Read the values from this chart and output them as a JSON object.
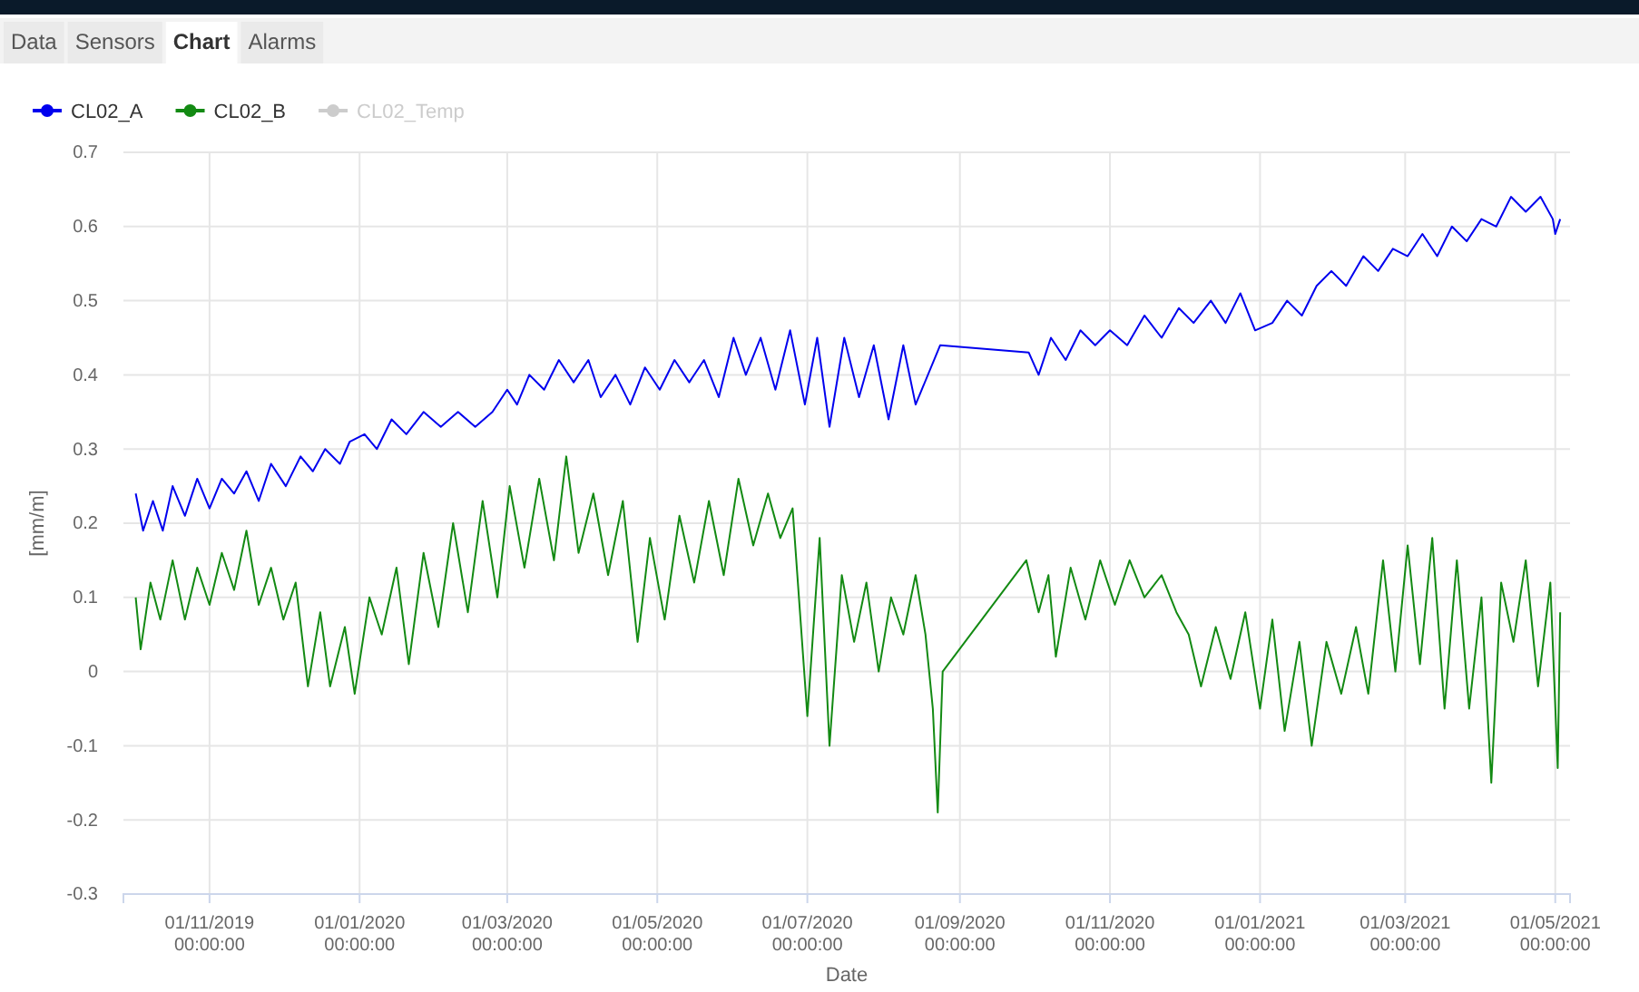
{
  "chart_data": {
    "type": "line",
    "xlabel": "Date",
    "ylabel": "[mm/m]",
    "annotations": [
      "Data",
      "Sensors",
      "Chart",
      "Alarms"
    ],
    "xlim": [
      "2019-09-27",
      "2021-05-07"
    ],
    "xticks": [
      {
        "value": "2019-11-01",
        "label": "01/11/2019 00:00:00"
      },
      {
        "value": "2020-01-01",
        "label": "01/01/2020 00:00:00"
      },
      {
        "value": "2020-03-01",
        "label": "01/03/2020 00:00:00"
      },
      {
        "value": "2020-05-01",
        "label": "01/05/2020 00:00:00"
      },
      {
        "value": "2020-07-01",
        "label": "01/07/2020 00:00:00"
      },
      {
        "value": "2020-09-01",
        "label": "01/09/2020 00:00:00"
      },
      {
        "value": "2020-11-01",
        "label": "01/11/2020 00:00:00"
      },
      {
        "value": "2021-01-01",
        "label": "01/01/2021 00:00:00"
      },
      {
        "value": "2021-03-01",
        "label": "01/03/2021 00:00:00"
      },
      {
        "value": "2021-05-01",
        "label": "01/05/2021 00:00:00"
      }
    ],
    "ylim": [
      -0.3,
      0.7
    ],
    "yticks": [
      -0.3,
      -0.2,
      -0.1,
      0,
      0.1,
      0.2,
      0.3,
      0.4,
      0.5,
      0.6,
      0.7
    ],
    "grid": true,
    "legend": "top left",
    "series": [
      {
        "name": "CL02_A",
        "color": "#0000ee",
        "x": [
          "2019-10-02",
          "2019-10-05",
          "2019-10-09",
          "2019-10-13",
          "2019-10-17",
          "2019-10-22",
          "2019-10-27",
          "2019-11-01",
          "2019-11-06",
          "2019-11-11",
          "2019-11-16",
          "2019-11-21",
          "2019-11-26",
          "2019-12-02",
          "2019-12-08",
          "2019-12-13",
          "2019-12-18",
          "2019-12-24",
          "2019-12-28",
          "2020-01-03",
          "2020-01-08",
          "2020-01-14",
          "2020-01-20",
          "2020-01-27",
          "2020-02-03",
          "2020-02-10",
          "2020-02-17",
          "2020-02-24",
          "2020-03-01",
          "2020-03-05",
          "2020-03-10",
          "2020-03-16",
          "2020-03-22",
          "2020-03-28",
          "2020-04-03",
          "2020-04-08",
          "2020-04-14",
          "2020-04-20",
          "2020-04-26",
          "2020-05-02",
          "2020-05-08",
          "2020-05-14",
          "2020-05-20",
          "2020-05-26",
          "2020-06-01",
          "2020-06-06",
          "2020-06-12",
          "2020-06-18",
          "2020-06-24",
          "2020-06-30",
          "2020-07-05",
          "2020-07-10",
          "2020-07-16",
          "2020-07-22",
          "2020-07-28",
          "2020-08-03",
          "2020-08-09",
          "2020-08-14",
          "2020-08-24",
          "2020-09-29",
          "2020-10-03",
          "2020-10-08",
          "2020-10-14",
          "2020-10-20",
          "2020-10-26",
          "2020-11-01",
          "2020-11-08",
          "2020-11-15",
          "2020-11-22",
          "2020-11-29",
          "2020-12-05",
          "2020-12-12",
          "2020-12-18",
          "2020-12-24",
          "2020-12-30",
          "2021-01-06",
          "2021-01-12",
          "2021-01-18",
          "2021-01-24",
          "2021-01-30",
          "2021-02-05",
          "2021-02-12",
          "2021-02-18",
          "2021-02-24",
          "2021-03-02",
          "2021-03-08",
          "2021-03-14",
          "2021-03-20",
          "2021-03-26",
          "2021-04-01",
          "2021-04-07",
          "2021-04-13",
          "2021-04-19",
          "2021-04-25",
          "2021-04-30",
          "2021-05-01",
          "2021-05-03"
        ],
        "values": [
          0.24,
          0.19,
          0.23,
          0.19,
          0.25,
          0.21,
          0.26,
          0.22,
          0.26,
          0.24,
          0.27,
          0.23,
          0.28,
          0.25,
          0.29,
          0.27,
          0.3,
          0.28,
          0.31,
          0.32,
          0.3,
          0.34,
          0.32,
          0.35,
          0.33,
          0.35,
          0.33,
          0.35,
          0.38,
          0.36,
          0.4,
          0.38,
          0.42,
          0.39,
          0.42,
          0.37,
          0.4,
          0.36,
          0.41,
          0.38,
          0.42,
          0.39,
          0.42,
          0.37,
          0.45,
          0.4,
          0.45,
          0.38,
          0.46,
          0.36,
          0.45,
          0.33,
          0.45,
          0.37,
          0.44,
          0.34,
          0.44,
          0.36,
          0.44,
          0.43,
          0.4,
          0.45,
          0.42,
          0.46,
          0.44,
          0.46,
          0.44,
          0.48,
          0.45,
          0.49,
          0.47,
          0.5,
          0.47,
          0.51,
          0.46,
          0.47,
          0.5,
          0.48,
          0.52,
          0.54,
          0.52,
          0.56,
          0.54,
          0.57,
          0.56,
          0.59,
          0.56,
          0.6,
          0.58,
          0.61,
          0.6,
          0.64,
          0.62,
          0.64,
          0.61,
          0.59,
          0.61
        ]
      },
      {
        "name": "CL02_B",
        "color": "#138a13",
        "x": [
          "2019-10-02",
          "2019-10-04",
          "2019-10-08",
          "2019-10-12",
          "2019-10-17",
          "2019-10-22",
          "2019-10-27",
          "2019-11-01",
          "2019-11-06",
          "2019-11-11",
          "2019-11-16",
          "2019-11-21",
          "2019-11-26",
          "2019-12-01",
          "2019-12-06",
          "2019-12-11",
          "2019-12-16",
          "2019-12-20",
          "2019-12-26",
          "2019-12-30",
          "2020-01-05",
          "2020-01-10",
          "2020-01-16",
          "2020-01-21",
          "2020-01-27",
          "2020-02-02",
          "2020-02-08",
          "2020-02-14",
          "2020-02-20",
          "2020-02-26",
          "2020-03-02",
          "2020-03-08",
          "2020-03-14",
          "2020-03-20",
          "2020-03-25",
          "2020-03-30",
          "2020-04-05",
          "2020-04-11",
          "2020-04-17",
          "2020-04-23",
          "2020-04-28",
          "2020-05-04",
          "2020-05-10",
          "2020-05-16",
          "2020-05-22",
          "2020-05-28",
          "2020-06-03",
          "2020-06-09",
          "2020-06-15",
          "2020-06-20",
          "2020-06-25",
          "2020-07-01",
          "2020-07-06",
          "2020-07-10",
          "2020-07-15",
          "2020-07-20",
          "2020-07-25",
          "2020-07-30",
          "2020-08-04",
          "2020-08-09",
          "2020-08-14",
          "2020-08-18",
          "2020-08-21",
          "2020-08-23",
          "2020-08-25",
          "2020-09-28",
          "2020-10-03",
          "2020-10-07",
          "2020-10-10",
          "2020-10-16",
          "2020-10-22",
          "2020-10-28",
          "2020-11-03",
          "2020-11-09",
          "2020-11-15",
          "2020-11-22",
          "2020-11-28",
          "2020-12-03",
          "2020-12-08",
          "2020-12-14",
          "2020-12-20",
          "2020-12-26",
          "2021-01-01",
          "2021-01-06",
          "2021-01-11",
          "2021-01-17",
          "2021-01-22",
          "2021-01-28",
          "2021-02-03",
          "2021-02-09",
          "2021-02-14",
          "2021-02-20",
          "2021-02-25",
          "2021-03-02",
          "2021-03-07",
          "2021-03-12",
          "2021-03-17",
          "2021-03-22",
          "2021-03-27",
          "2021-04-01",
          "2021-04-05",
          "2021-04-09",
          "2021-04-14",
          "2021-04-19",
          "2021-04-24",
          "2021-04-29",
          "2021-05-02",
          "2021-05-03"
        ],
        "values": [
          0.1,
          0.03,
          0.12,
          0.07,
          0.15,
          0.07,
          0.14,
          0.09,
          0.16,
          0.11,
          0.19,
          0.09,
          0.14,
          0.07,
          0.12,
          -0.02,
          0.08,
          -0.02,
          0.06,
          -0.03,
          0.1,
          0.05,
          0.14,
          0.01,
          0.16,
          0.06,
          0.2,
          0.08,
          0.23,
          0.1,
          0.25,
          0.14,
          0.26,
          0.15,
          0.29,
          0.16,
          0.24,
          0.13,
          0.23,
          0.04,
          0.18,
          0.07,
          0.21,
          0.12,
          0.23,
          0.13,
          0.26,
          0.17,
          0.24,
          0.18,
          0.22,
          -0.06,
          0.18,
          -0.1,
          0.13,
          0.04,
          0.12,
          0.0,
          0.1,
          0.05,
          0.13,
          0.05,
          -0.05,
          -0.19,
          0.0,
          0.15,
          0.08,
          0.13,
          0.02,
          0.14,
          0.07,
          0.15,
          0.09,
          0.15,
          0.1,
          0.13,
          0.08,
          0.05,
          -0.02,
          0.06,
          -0.01,
          0.08,
          -0.05,
          0.07,
          -0.08,
          0.04,
          -0.1,
          0.04,
          -0.03,
          0.06,
          -0.03,
          0.15,
          0.0,
          0.17,
          0.01,
          0.18,
          -0.05,
          0.15,
          -0.05,
          0.1,
          -0.15,
          0.12,
          0.04,
          0.15,
          -0.02,
          0.12,
          -0.13,
          0.08
        ]
      },
      {
        "name": "CL02_Temp",
        "color": "#cccccc"
      }
    ]
  }
}
